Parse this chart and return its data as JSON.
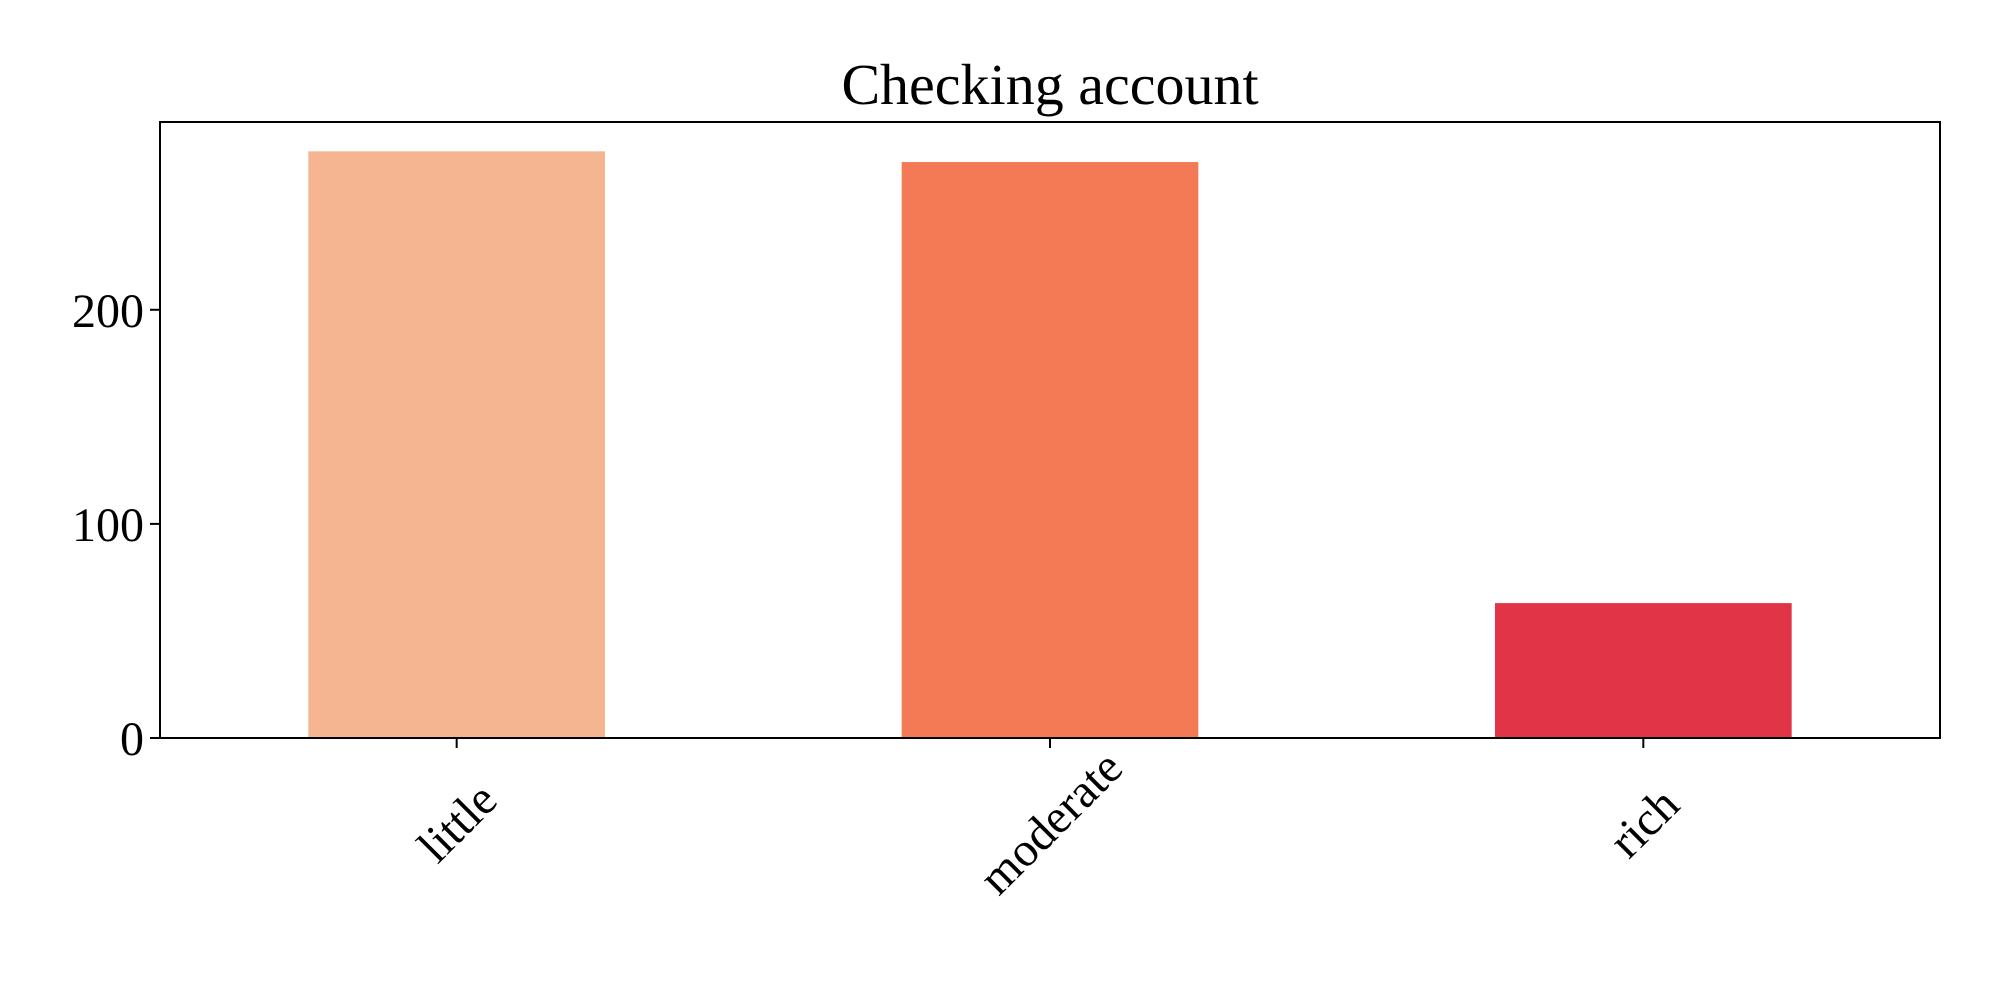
{
  "chart_data": {
    "type": "bar",
    "title": "Checking account",
    "categories": [
      "little",
      "moderate",
      "rich"
    ],
    "values": [
      274,
      269,
      63
    ],
    "colors": [
      "#f5b591",
      "#f37a55",
      "#e13446"
    ],
    "ylim": [
      0,
      287.7
    ],
    "yticks": [
      0,
      100,
      200
    ]
  }
}
